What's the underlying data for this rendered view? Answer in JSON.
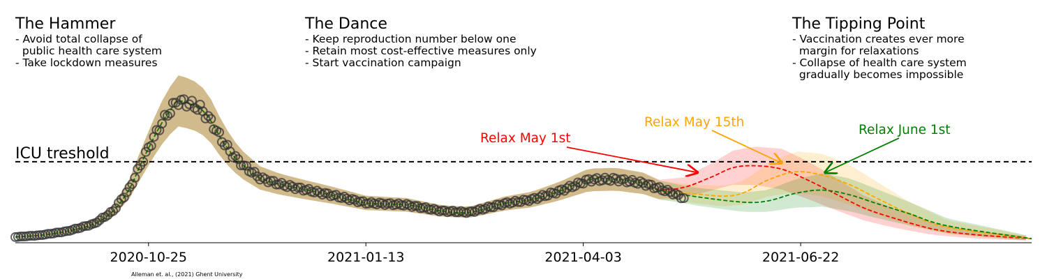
{
  "phases": [
    {
      "title": "The Hammer",
      "lines": [
        "- Avoid total collapse of",
        "  public health care system",
        "- Take lockdown measures"
      ]
    },
    {
      "title": "The Dance",
      "lines": [
        "- Keep reproduction number below one",
        "- Retain most cost-effective measures only",
        "- Start vaccination campaign"
      ]
    },
    {
      "title": "The Tipping Point",
      "lines": [
        "- Vaccination creates ever more",
        "  margin for relaxations",
        "- Collapse of health care system",
        "  gradually becomes impossible"
      ]
    }
  ],
  "chart_data": {
    "type": "line",
    "x_range": [
      "2020-09-06",
      "2021-09-15"
    ],
    "y_range": [
      0,
      2200
    ],
    "x_ticks": [
      "2020-10-25",
      "2021-01-13",
      "2021-04-03",
      "2021-06-22"
    ],
    "threshold": {
      "label": "ICU treshold",
      "value": 1200
    },
    "credit": "Alleman et. al., (2021) Ghent University",
    "colors": {
      "observed": "#333333",
      "relax_may_1": "#ff0000",
      "relax_may_15": "#ffa500",
      "relax_june_1": "#008000",
      "threshold": "#000000"
    },
    "observed": {
      "x": [
        "2020-09-06",
        "2020-09-15",
        "2020-09-25",
        "2020-10-05",
        "2020-10-12",
        "2020-10-18",
        "2020-10-22",
        "2020-10-26",
        "2020-10-30",
        "2020-11-03",
        "2020-11-05",
        "2020-11-09",
        "2020-11-13",
        "2020-11-17",
        "2020-11-21",
        "2020-11-25",
        "2020-11-29",
        "2020-12-05",
        "2020-12-12",
        "2020-12-20",
        "2021-01-01",
        "2021-01-13",
        "2021-01-28",
        "2021-02-10",
        "2021-02-20",
        "2021-03-05",
        "2021-03-15",
        "2021-03-25",
        "2021-04-05",
        "2021-04-15",
        "2021-04-25",
        "2021-05-05",
        "2021-05-10"
      ],
      "y": [
        85,
        110,
        170,
        280,
        470,
        800,
        1150,
        1480,
        1780,
        2020,
        2100,
        2060,
        1990,
        1800,
        1520,
        1300,
        1140,
        960,
        870,
        800,
        700,
        590,
        560,
        470,
        450,
        580,
        640,
        760,
        930,
        940,
        880,
        750,
        660
      ]
    },
    "series": [
      {
        "name": "Relax May 1st",
        "x": [
          "2021-05-01",
          "2021-05-10",
          "2021-05-20",
          "2021-05-28",
          "2021-06-05",
          "2021-06-15",
          "2021-06-25",
          "2021-07-05",
          "2021-07-15",
          "2021-07-25",
          "2021-08-10",
          "2021-08-25",
          "2021-09-15"
        ],
        "y": [
          790,
          820,
          970,
          1110,
          1140,
          1090,
          920,
          720,
          520,
          380,
          200,
          120,
          60
        ]
      },
      {
        "name": "Relax May 15th",
        "x": [
          "2021-05-01",
          "2021-05-15",
          "2021-05-25",
          "2021-06-01",
          "2021-06-10",
          "2021-06-20",
          "2021-06-30",
          "2021-07-10",
          "2021-07-20",
          "2021-08-01",
          "2021-08-15",
          "2021-09-15"
        ],
        "y": [
          780,
          720,
          690,
          740,
          930,
          1050,
          1000,
          860,
          660,
          430,
          230,
          60
        ]
      },
      {
        "name": "Relax June 1st",
        "x": [
          "2021-05-01",
          "2021-05-15",
          "2021-06-01",
          "2021-06-10",
          "2021-06-20",
          "2021-06-30",
          "2021-07-10",
          "2021-07-20",
          "2021-08-01",
          "2021-08-15",
          "2021-09-15"
        ],
        "y": [
          780,
          680,
          600,
          620,
          730,
          780,
          710,
          580,
          430,
          250,
          60
        ]
      }
    ],
    "annotations": [
      {
        "text": "Relax May 1st",
        "color": "#ff0000",
        "target_x": "2021-05-15",
        "target_y": 1040
      },
      {
        "text": "Relax May 15th",
        "color": "#ffa500",
        "target_x": "2021-06-15",
        "target_y": 1180
      },
      {
        "text": "Relax June 1st",
        "color": "#008000",
        "target_x": "2021-07-01",
        "target_y": 1040
      }
    ]
  }
}
